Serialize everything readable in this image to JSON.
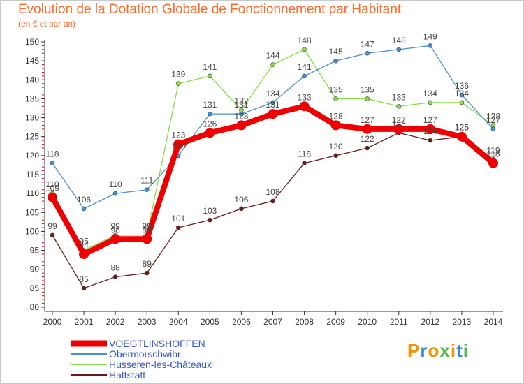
{
  "header": {
    "title": "Evolution de la Dotation Globale de Fonctionnement par Habitant",
    "subtitle": "(en € et par an)"
  },
  "logo": {
    "text": "Proxiti"
  },
  "chart_data": {
    "type": "line",
    "x": [
      2000,
      2001,
      2002,
      2003,
      2004,
      2005,
      2006,
      2007,
      2008,
      2009,
      2010,
      2011,
      2012,
      2013,
      2014
    ],
    "ylim": [
      80,
      150
    ],
    "yticks": [
      80,
      85,
      90,
      95,
      100,
      105,
      110,
      115,
      120,
      125,
      130,
      135,
      140,
      145,
      150
    ],
    "grid": false,
    "legend": "bottom-left",
    "series": [
      {
        "name": "Hattstatt",
        "color": "#6b1a1a",
        "values": [
          99,
          85,
          88,
          89,
          101,
          103,
          106,
          108,
          118,
          120,
          122,
          126,
          124,
          125,
          119
        ]
      },
      {
        "name": "Husseren-les-Châteaux",
        "color": "#88dd44",
        "values": [
          110,
          95,
          99,
          99,
          139,
          141,
          132,
          144,
          148,
          135,
          135,
          133,
          134,
          134,
          128
        ]
      },
      {
        "name": "Obermorschwihr",
        "color": "#4a90d0",
        "values": [
          118,
          106,
          110,
          111,
          120,
          131,
          131,
          134,
          141,
          145,
          147,
          148,
          149,
          136,
          127
        ]
      },
      {
        "name": "VOEGTLINSHOFFEN",
        "color": "#ee0000",
        "values": [
          109,
          94,
          98,
          98,
          123,
          126,
          128,
          131,
          133,
          128,
          127,
          127,
          127,
          125,
          118
        ]
      }
    ],
    "legend_order": [
      "VOEGTLINSHOFFEN",
      "Obermorschwihr",
      "Husseren-les-Châteaux",
      "Hattstatt"
    ]
  }
}
